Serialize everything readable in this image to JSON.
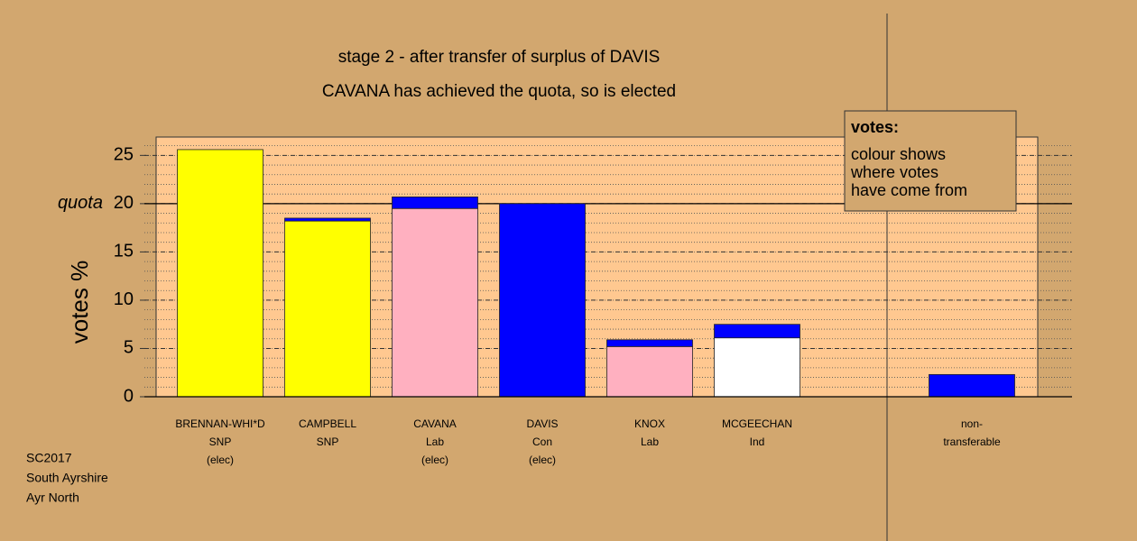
{
  "chart_data": {
    "type": "bar",
    "title": "stage 2 - after transfer of surplus of DAVIS",
    "subtitle": "CAVANA has achieved the quota, so is elected",
    "ylabel": "votes %",
    "categories": [
      [
        "BRENNAN-WHI*D",
        "SNP",
        "(elec)"
      ],
      [
        "CAMPBELL",
        "SNP"
      ],
      [
        "CAVANA",
        "Lab",
        "(elec)"
      ],
      [
        "DAVIS",
        "Con",
        "(elec)"
      ],
      [
        "KNOX",
        "Lab"
      ],
      [
        "MCGEECHAN",
        "Ind"
      ],
      null,
      [
        "non-",
        "transferable"
      ]
    ],
    "series": [
      {
        "colors": [
          "#ffff00",
          "#ffff00",
          "#ffb0c0",
          "#0000ff",
          "#ffb0c0",
          "#ffffff",
          null,
          "#0000ff"
        ],
        "values": [
          25.6,
          18.2,
          19.5,
          20.0,
          5.2,
          6.1,
          null,
          2.3
        ]
      },
      {
        "colors": [
          null,
          "#0000ff",
          "#0000ff",
          null,
          "#0000ff",
          "#0000ff",
          null,
          null
        ],
        "values": [
          null,
          0.3,
          1.2,
          null,
          0.7,
          1.4,
          null,
          null
        ]
      }
    ],
    "ylim": [
      0,
      26.9
    ],
    "yticks": [
      0,
      5,
      10,
      15,
      20,
      25
    ],
    "minor_grid": 1,
    "quota": {
      "label": "quota",
      "value": 20
    },
    "info_box": {
      "title": "votes:",
      "lines": [
        "colour shows",
        "where votes",
        "have come from"
      ]
    },
    "footer": [
      "SC2017",
      "South Ayrshire",
      "Ayr North"
    ]
  }
}
